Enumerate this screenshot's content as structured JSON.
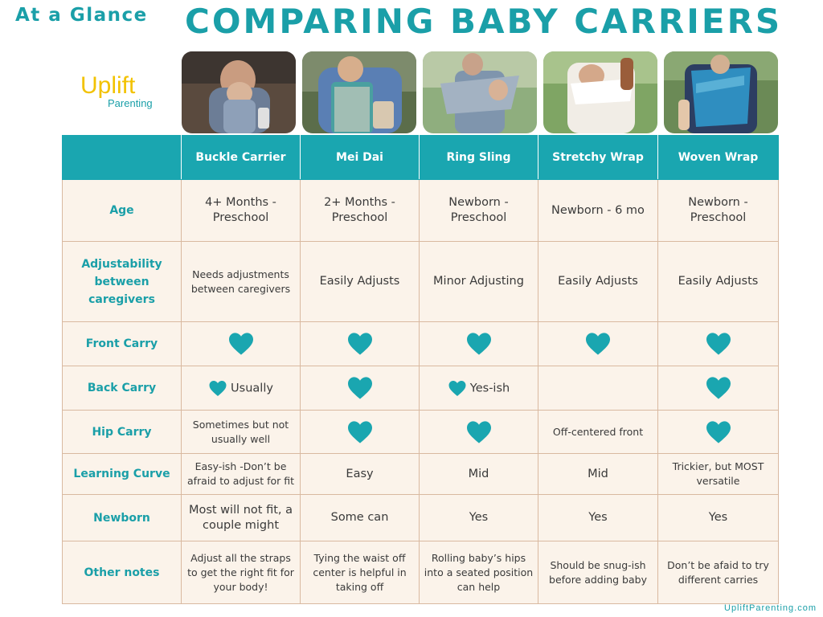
{
  "header": {
    "eyebrow": "At a Glance",
    "title": "COMPARING BABY CARRIERS"
  },
  "logo": {
    "word1": "Uplift",
    "word2": "Parenting",
    "color_word1": "#f2c200",
    "color_word2": "#1a9fa8"
  },
  "colors": {
    "accent": "#1aa6b0",
    "heart": "#1aa6b0",
    "cell_bg": "#fbf3ea",
    "cell_border": "#d9b9a0"
  },
  "table": {
    "columns": [
      "Buckle Carrier",
      "Mei Dai",
      "Ring Sling",
      "Stretchy Wrap",
      "Woven Wrap"
    ],
    "rows": {
      "age": {
        "label": "Age",
        "cells": [
          "4+ Months - Preschool",
          "2+ Months - Preschool",
          "Newborn - Preschool",
          "Newborn - 6 mo",
          "Newborn - Preschool"
        ]
      },
      "adjustability": {
        "label": "Adjustability between caregivers",
        "cells": [
          "Needs adjustments between caregivers",
          "Easily Adjusts",
          "Minor Adjusting",
          "Easily Adjusts",
          "Easily Adjusts"
        ]
      },
      "front_carry": {
        "label": "Front Carry",
        "cells": [
          "",
          "",
          "",
          "",
          ""
        ],
        "icons": [
          "heart-icon",
          "heart-icon",
          "heart-icon",
          "heart-icon",
          "heart-icon"
        ]
      },
      "back_carry": {
        "label": "Back Carry",
        "cells": [
          "Usually",
          "",
          "Yes-ish",
          "",
          ""
        ],
        "icons": [
          "heart-icon-small",
          "heart-icon",
          "heart-icon-small",
          "none",
          "heart-icon"
        ]
      },
      "hip_carry": {
        "label": "Hip Carry",
        "cells": [
          "Sometimes but not usually well",
          "",
          "",
          "Off-centered front",
          ""
        ],
        "icons": [
          "none",
          "heart-icon",
          "heart-icon",
          "none",
          "heart-icon"
        ]
      },
      "learning_curve": {
        "label": "Learning Curve",
        "cells": [
          "Easy-ish -Don’t be afraid to adjust for fit",
          "Easy",
          "Mid",
          "Mid",
          "Trickier, but MOST versatile"
        ]
      },
      "newborn": {
        "label": "Newborn",
        "cells": [
          "Most will not fit, a couple might",
          "Some can",
          "Yes",
          "Yes",
          "Yes"
        ]
      },
      "other_notes": {
        "label": "Other notes",
        "cells": [
          "Adjust all the straps to get the right fit for your body!",
          "Tying the waist off center is helpful in taking off",
          "Rolling baby’s hips into a seated position can help",
          "Should be snug-ish before adding baby",
          "Don’t be afaid to try different carries"
        ]
      }
    }
  },
  "footer": {
    "url": "UpliftParenting.com"
  }
}
